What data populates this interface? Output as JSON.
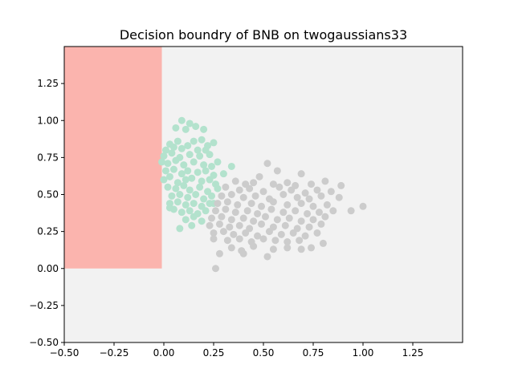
{
  "chart_data": {
    "type": "scatter",
    "title": "Decision boundry of BNB on twogaussians33",
    "xlabel": "",
    "ylabel": "",
    "xlim": [
      -0.5,
      1.5
    ],
    "ylim": [
      -0.5,
      1.5
    ],
    "x_ticks": [
      -0.5,
      -0.25,
      0.0,
      0.25,
      0.5,
      0.75,
      1.0,
      1.25
    ],
    "x_tick_labels": [
      "−0.50",
      "−0.25",
      "0.00",
      "0.25",
      "0.50",
      "0.75",
      "1.00",
      "1.25"
    ],
    "y_ticks": [
      -0.5,
      -0.25,
      0.0,
      0.25,
      0.5,
      0.75,
      1.0,
      1.25
    ],
    "y_tick_labels": [
      "−0.50",
      "−0.25",
      "0.00",
      "0.25",
      "0.50",
      "0.75",
      "1.00",
      "1.25"
    ],
    "grid": false,
    "legend": false,
    "background_color": "#f2f2f2",
    "decision_regions": [
      {
        "class": 0,
        "x": [
          -0.5,
          -0.01
        ],
        "y": [
          0.0,
          1.5
        ],
        "color": "#fbb4ae"
      }
    ],
    "series": [
      {
        "color": "#b3e2cd",
        "points": [
          [
            0.09,
            1.0
          ],
          [
            0.13,
            0.98
          ],
          [
            0.06,
            0.95
          ],
          [
            0.11,
            0.94
          ],
          [
            0.16,
            0.96
          ],
          [
            0.2,
            0.94
          ],
          [
            0.03,
            0.84
          ],
          [
            0.07,
            0.86
          ],
          [
            0.15,
            0.86
          ],
          [
            0.19,
            0.87
          ],
          [
            0.22,
            0.83
          ],
          [
            0.25,
            0.85
          ],
          [
            0.01,
            0.8
          ],
          [
            0.05,
            0.82
          ],
          [
            0.09,
            0.81
          ],
          [
            0.12,
            0.83
          ],
          [
            0.17,
            0.8
          ],
          [
            0.21,
            0.8
          ],
          [
            0.0,
            0.76
          ],
          [
            0.04,
            0.78
          ],
          [
            0.08,
            0.75
          ],
          [
            0.13,
            0.77
          ],
          [
            0.18,
            0.76
          ],
          [
            0.23,
            0.77
          ],
          [
            0.27,
            0.72
          ],
          [
            -0.01,
            0.72
          ],
          [
            0.02,
            0.71
          ],
          [
            0.06,
            0.73
          ],
          [
            0.1,
            0.7
          ],
          [
            0.15,
            0.72
          ],
          [
            0.2,
            0.7
          ],
          [
            0.24,
            0.69
          ],
          [
            0.34,
            0.69
          ],
          [
            0.01,
            0.66
          ],
          [
            0.05,
            0.67
          ],
          [
            0.09,
            0.64
          ],
          [
            0.12,
            0.66
          ],
          [
            0.17,
            0.65
          ],
          [
            0.21,
            0.66
          ],
          [
            0.25,
            0.63
          ],
          [
            0.3,
            0.64
          ],
          [
            0.0,
            0.6
          ],
          [
            0.03,
            0.62
          ],
          [
            0.07,
            0.58
          ],
          [
            0.11,
            0.6
          ],
          [
            0.14,
            0.61
          ],
          [
            0.19,
            0.59
          ],
          [
            0.23,
            0.6
          ],
          [
            0.26,
            0.57
          ],
          [
            0.02,
            0.55
          ],
          [
            0.06,
            0.54
          ],
          [
            0.1,
            0.56
          ],
          [
            0.13,
            0.53
          ],
          [
            0.18,
            0.55
          ],
          [
            0.22,
            0.52
          ],
          [
            0.27,
            0.54
          ],
          [
            0.04,
            0.49
          ],
          [
            0.08,
            0.5
          ],
          [
            0.12,
            0.48
          ],
          [
            0.16,
            0.5
          ],
          [
            0.2,
            0.47
          ],
          [
            0.24,
            0.49
          ],
          [
            0.03,
            0.44
          ],
          [
            0.07,
            0.45
          ],
          [
            0.11,
            0.43
          ],
          [
            0.15,
            0.44
          ],
          [
            0.19,
            0.42
          ],
          [
            0.23,
            0.44
          ],
          [
            0.05,
            0.4
          ],
          [
            0.09,
            0.38
          ],
          [
            0.13,
            0.39
          ],
          [
            0.17,
            0.37
          ],
          [
            0.21,
            0.39
          ],
          [
            0.11,
            0.33
          ],
          [
            0.15,
            0.35
          ],
          [
            0.19,
            0.32
          ],
          [
            0.08,
            0.27
          ],
          [
            0.14,
            0.29
          ],
          [
            0.03,
            0.41
          ],
          [
            0.25,
            0.44
          ]
        ]
      },
      {
        "color": "#cccccc",
        "points": [
          [
            0.52,
            0.71
          ],
          [
            0.57,
            0.66
          ],
          [
            0.69,
            0.64
          ],
          [
            0.48,
            0.62
          ],
          [
            0.81,
            0.59
          ],
          [
            0.89,
            0.56
          ],
          [
            0.36,
            0.59
          ],
          [
            0.41,
            0.57
          ],
          [
            0.45,
            0.58
          ],
          [
            0.55,
            0.57
          ],
          [
            0.62,
            0.58
          ],
          [
            0.66,
            0.56
          ],
          [
            0.74,
            0.57
          ],
          [
            0.31,
            0.55
          ],
          [
            0.38,
            0.53
          ],
          [
            0.43,
            0.54
          ],
          [
            0.5,
            0.52
          ],
          [
            0.58,
            0.55
          ],
          [
            0.64,
            0.53
          ],
          [
            0.71,
            0.51
          ],
          [
            0.77,
            0.53
          ],
          [
            0.84,
            0.52
          ],
          [
            0.29,
            0.49
          ],
          [
            0.34,
            0.5
          ],
          [
            0.4,
            0.48
          ],
          [
            0.46,
            0.49
          ],
          [
            0.53,
            0.47
          ],
          [
            0.6,
            0.5
          ],
          [
            0.67,
            0.48
          ],
          [
            0.73,
            0.47
          ],
          [
            0.79,
            0.49
          ],
          [
            0.88,
            0.48
          ],
          [
            0.27,
            0.44
          ],
          [
            0.32,
            0.45
          ],
          [
            0.37,
            0.43
          ],
          [
            0.44,
            0.44
          ],
          [
            0.49,
            0.42
          ],
          [
            0.55,
            0.45
          ],
          [
            0.62,
            0.43
          ],
          [
            0.69,
            0.44
          ],
          [
            0.75,
            0.42
          ],
          [
            0.82,
            0.43
          ],
          [
            0.26,
            0.39
          ],
          [
            0.31,
            0.4
          ],
          [
            0.36,
            0.38
          ],
          [
            0.42,
            0.39
          ],
          [
            0.47,
            0.37
          ],
          [
            0.54,
            0.4
          ],
          [
            0.6,
            0.38
          ],
          [
            0.66,
            0.39
          ],
          [
            0.72,
            0.37
          ],
          [
            0.78,
            0.38
          ],
          [
            0.85,
            0.39
          ],
          [
            0.94,
            0.39
          ],
          [
            1.0,
            0.42
          ],
          [
            0.24,
            0.34
          ],
          [
            0.29,
            0.35
          ],
          [
            0.34,
            0.33
          ],
          [
            0.4,
            0.34
          ],
          [
            0.45,
            0.32
          ],
          [
            0.51,
            0.35
          ],
          [
            0.57,
            0.33
          ],
          [
            0.63,
            0.34
          ],
          [
            0.69,
            0.32
          ],
          [
            0.75,
            0.33
          ],
          [
            0.81,
            0.35
          ],
          [
            0.23,
            0.29
          ],
          [
            0.28,
            0.3
          ],
          [
            0.33,
            0.28
          ],
          [
            0.38,
            0.29
          ],
          [
            0.43,
            0.27
          ],
          [
            0.49,
            0.3
          ],
          [
            0.55,
            0.28
          ],
          [
            0.61,
            0.29
          ],
          [
            0.67,
            0.27
          ],
          [
            0.73,
            0.28
          ],
          [
            0.79,
            0.3
          ],
          [
            0.25,
            0.24
          ],
          [
            0.3,
            0.25
          ],
          [
            0.35,
            0.23
          ],
          [
            0.41,
            0.24
          ],
          [
            0.47,
            0.22
          ],
          [
            0.53,
            0.25
          ],
          [
            0.59,
            0.23
          ],
          [
            0.65,
            0.24
          ],
          [
            0.71,
            0.22
          ],
          [
            0.77,
            0.24
          ],
          [
            0.25,
            0.2
          ],
          [
            0.32,
            0.19
          ],
          [
            0.38,
            0.2
          ],
          [
            0.44,
            0.18
          ],
          [
            0.5,
            0.2
          ],
          [
            0.56,
            0.19
          ],
          [
            0.62,
            0.18
          ],
          [
            0.68,
            0.19
          ],
          [
            0.8,
            0.17
          ],
          [
            0.34,
            0.14
          ],
          [
            0.39,
            0.12
          ],
          [
            0.45,
            0.15
          ],
          [
            0.55,
            0.13
          ],
          [
            0.62,
            0.14
          ],
          [
            0.69,
            0.13
          ],
          [
            0.74,
            0.14
          ],
          [
            0.28,
            0.1
          ],
          [
            0.4,
            0.1
          ],
          [
            0.52,
            0.08
          ],
          [
            0.26,
            0.0
          ]
        ]
      }
    ]
  }
}
